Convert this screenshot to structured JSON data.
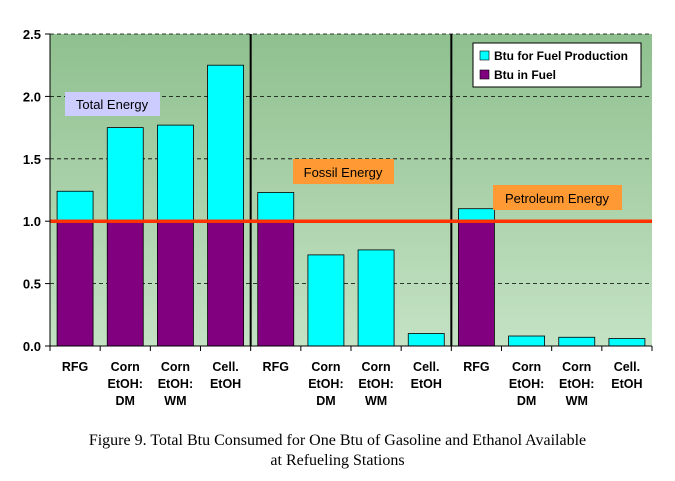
{
  "chart_data": {
    "type": "bar",
    "stacked": true,
    "categories": [
      [
        "RFG"
      ],
      [
        "Corn",
        "EtOH:",
        "DM"
      ],
      [
        "Corn",
        "EtOH:",
        "WM"
      ],
      [
        "Cell.",
        "EtOH"
      ],
      [
        "RFG"
      ],
      [
        "Corn",
        "EtOH:",
        "DM"
      ],
      [
        "Corn",
        "EtOH:",
        "WM"
      ],
      [
        "Cell.",
        "EtOH"
      ],
      [
        "RFG"
      ],
      [
        "Corn",
        "EtOH:",
        "DM"
      ],
      [
        "Corn",
        "EtOH:",
        "WM"
      ],
      [
        "Cell.",
        "EtOH"
      ]
    ],
    "series": [
      {
        "name": "Btu in Fuel",
        "color": "#800080",
        "values": [
          1.0,
          1.0,
          1.0,
          1.0,
          1.0,
          0,
          0,
          0,
          1.0,
          0,
          0,
          0
        ]
      },
      {
        "name": "Btu for Fuel Production",
        "color": "#00FFFF",
        "values": [
          0.24,
          0.75,
          0.77,
          1.25,
          0.23,
          0.73,
          0.77,
          0.1,
          0.1,
          0.08,
          0.07,
          0.06
        ]
      }
    ],
    "groups": [
      "Total Energy",
      "Fossil Energy",
      "Petroleum Energy"
    ],
    "reference_line": {
      "y": 1.0,
      "color": "#FF3300"
    },
    "yticks": [
      "0.0",
      "0.5",
      "1.0",
      "1.5",
      "2.0",
      "2.5"
    ],
    "ylim": [
      0,
      2.5
    ],
    "grid": "horizontal dashed",
    "legend_position": "top-right",
    "plot_background": "#99CC99",
    "annotation_colors": {
      "Total Energy": "#CCCCFF",
      "Fossil Energy": "#FF9933",
      "Petroleum Energy": "#FF9933"
    }
  },
  "caption": {
    "line1": "Figure 9.  Total Btu Consumed for One Btu of Gasoline and Ethanol Available",
    "line2": "at Refueling Stations"
  }
}
